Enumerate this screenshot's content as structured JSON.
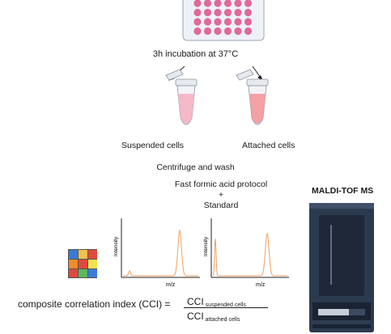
{
  "labels": {
    "incubation": "3h incubation at 37°C",
    "suspended": "Suspended cells",
    "attached": "Attached cells",
    "centrifuge": "Centrifuge and wash",
    "protocol": "Fast formic acid protocol",
    "plus": "+",
    "standard": "Standard",
    "instrument": "MALDI-TOF MS"
  },
  "spectra": {
    "y_label": "Intensity",
    "x_label": "m/z"
  },
  "formula": {
    "text": "composite correlation index (CCI) =",
    "numerator": "CCI",
    "numerator_sub": "suspended cells",
    "denominator": "CCI",
    "denominator_sub": "attached cells"
  },
  "colors": {
    "well": "#e0699a",
    "tube_suspended": "#f4b8c8",
    "tube_attached": "#f4a0a4",
    "spectrum": "#f0a060",
    "instrument": "#2c3a4f"
  }
}
